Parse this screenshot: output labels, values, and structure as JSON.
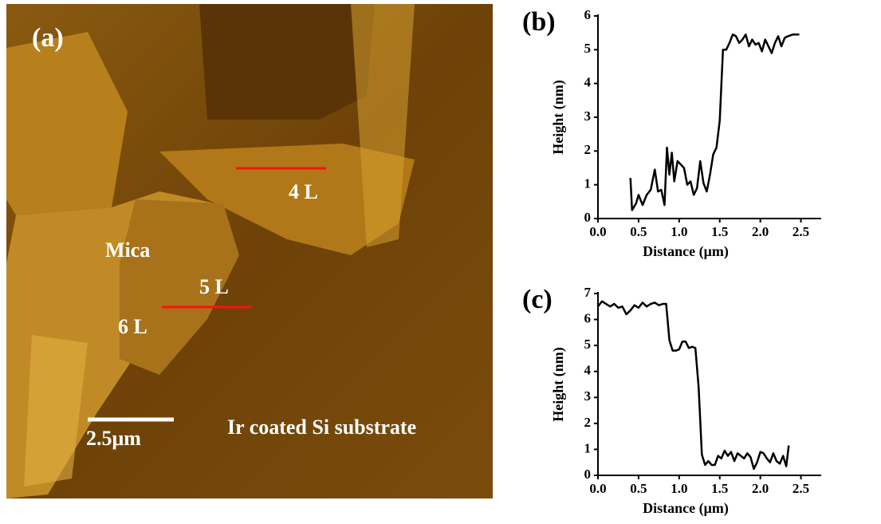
{
  "image": {
    "label": "(a)",
    "annotations": [
      "4 L",
      "5 L",
      "6 L",
      "Mica",
      "2.5μm",
      "Ir coated Si substrate"
    ]
  },
  "chart_data": [
    {
      "type": "line",
      "title": "(b)",
      "x_label": "Distance (μm)",
      "y_label": "Height (nm)",
      "color": "#000000",
      "x": [
        0.4,
        0.42,
        0.47,
        0.5,
        0.55,
        0.6,
        0.65,
        0.7,
        0.74,
        0.78,
        0.82,
        0.85,
        0.88,
        0.91,
        0.94,
        0.98,
        1.02,
        1.06,
        1.1,
        1.14,
        1.18,
        1.22,
        1.26,
        1.3,
        1.34,
        1.38,
        1.42,
        1.46,
        1.5,
        1.54,
        1.58,
        1.62,
        1.66,
        1.7,
        1.74,
        1.78,
        1.82,
        1.86,
        1.9,
        1.94,
        1.98,
        2.02,
        2.06,
        2.1,
        2.14,
        2.18,
        2.22,
        2.26,
        2.3,
        2.34,
        2.4,
        2.48
      ],
      "values": [
        1.2,
        0.25,
        0.45,
        0.7,
        0.4,
        0.7,
        0.85,
        1.45,
        0.8,
        0.85,
        0.4,
        2.1,
        1.3,
        1.95,
        1.1,
        1.7,
        1.6,
        1.5,
        1.0,
        1.1,
        0.7,
        0.9,
        1.7,
        1.05,
        0.8,
        1.3,
        1.9,
        2.1,
        2.9,
        5.0,
        5.0,
        5.2,
        5.45,
        5.4,
        5.2,
        5.3,
        5.45,
        5.1,
        5.3,
        5.15,
        5.2,
        4.95,
        5.3,
        5.1,
        4.9,
        5.2,
        5.4,
        5.1,
        5.35,
        5.4,
        5.45,
        5.45
      ],
      "xlim": [
        0,
        2.75
      ],
      "xticks": [
        {
          "value": 0,
          "label": "0.0"
        },
        0.5,
        {
          "value": 1,
          "label": "1.0"
        },
        1.5,
        {
          "value": 2,
          "label": "2.0"
        },
        2.5
      ],
      "ylim": [
        0,
        6
      ],
      "yticks": [
        0,
        1,
        2,
        3,
        4,
        5,
        6
      ]
    },
    {
      "type": "line",
      "title": "(c)",
      "x_label": "Distance (μm)",
      "y_label": "Height (nm)",
      "color": "#000000",
      "x": [
        0.0,
        0.05,
        0.1,
        0.15,
        0.2,
        0.25,
        0.3,
        0.35,
        0.4,
        0.45,
        0.5,
        0.55,
        0.6,
        0.65,
        0.7,
        0.75,
        0.8,
        0.84,
        0.88,
        0.92,
        0.96,
        1.0,
        1.04,
        1.08,
        1.12,
        1.16,
        1.2,
        1.24,
        1.28,
        1.32,
        1.36,
        1.4,
        1.44,
        1.48,
        1.52,
        1.56,
        1.6,
        1.64,
        1.68,
        1.72,
        1.76,
        1.8,
        1.84,
        1.88,
        1.92,
        1.96,
        2.0,
        2.04,
        2.08,
        2.12,
        2.16,
        2.2,
        2.24,
        2.28,
        2.32,
        2.35
      ],
      "values": [
        6.5,
        6.7,
        6.6,
        6.5,
        6.6,
        6.45,
        6.5,
        6.2,
        6.35,
        6.55,
        6.45,
        6.65,
        6.5,
        6.6,
        6.65,
        6.55,
        6.6,
        6.6,
        5.2,
        4.8,
        4.8,
        4.85,
        5.15,
        5.15,
        4.9,
        4.95,
        4.9,
        3.4,
        0.8,
        0.4,
        0.55,
        0.4,
        0.4,
        0.75,
        0.65,
        0.95,
        0.75,
        0.9,
        0.55,
        0.85,
        0.75,
        0.65,
        0.85,
        0.7,
        0.25,
        0.5,
        0.9,
        0.85,
        0.65,
        0.5,
        0.85,
        0.55,
        0.45,
        0.75,
        0.35,
        1.15
      ],
      "xlim": [
        0,
        2.75
      ],
      "xticks": [
        {
          "value": 0,
          "label": "0.0"
        },
        0.5,
        {
          "value": 1,
          "label": "1.0"
        },
        1.5,
        {
          "value": 2,
          "label": "2.0"
        },
        2.5
      ],
      "ylim": [
        0,
        7
      ],
      "yticks": [
        0,
        1,
        2,
        3,
        4,
        5,
        6,
        7
      ]
    }
  ]
}
